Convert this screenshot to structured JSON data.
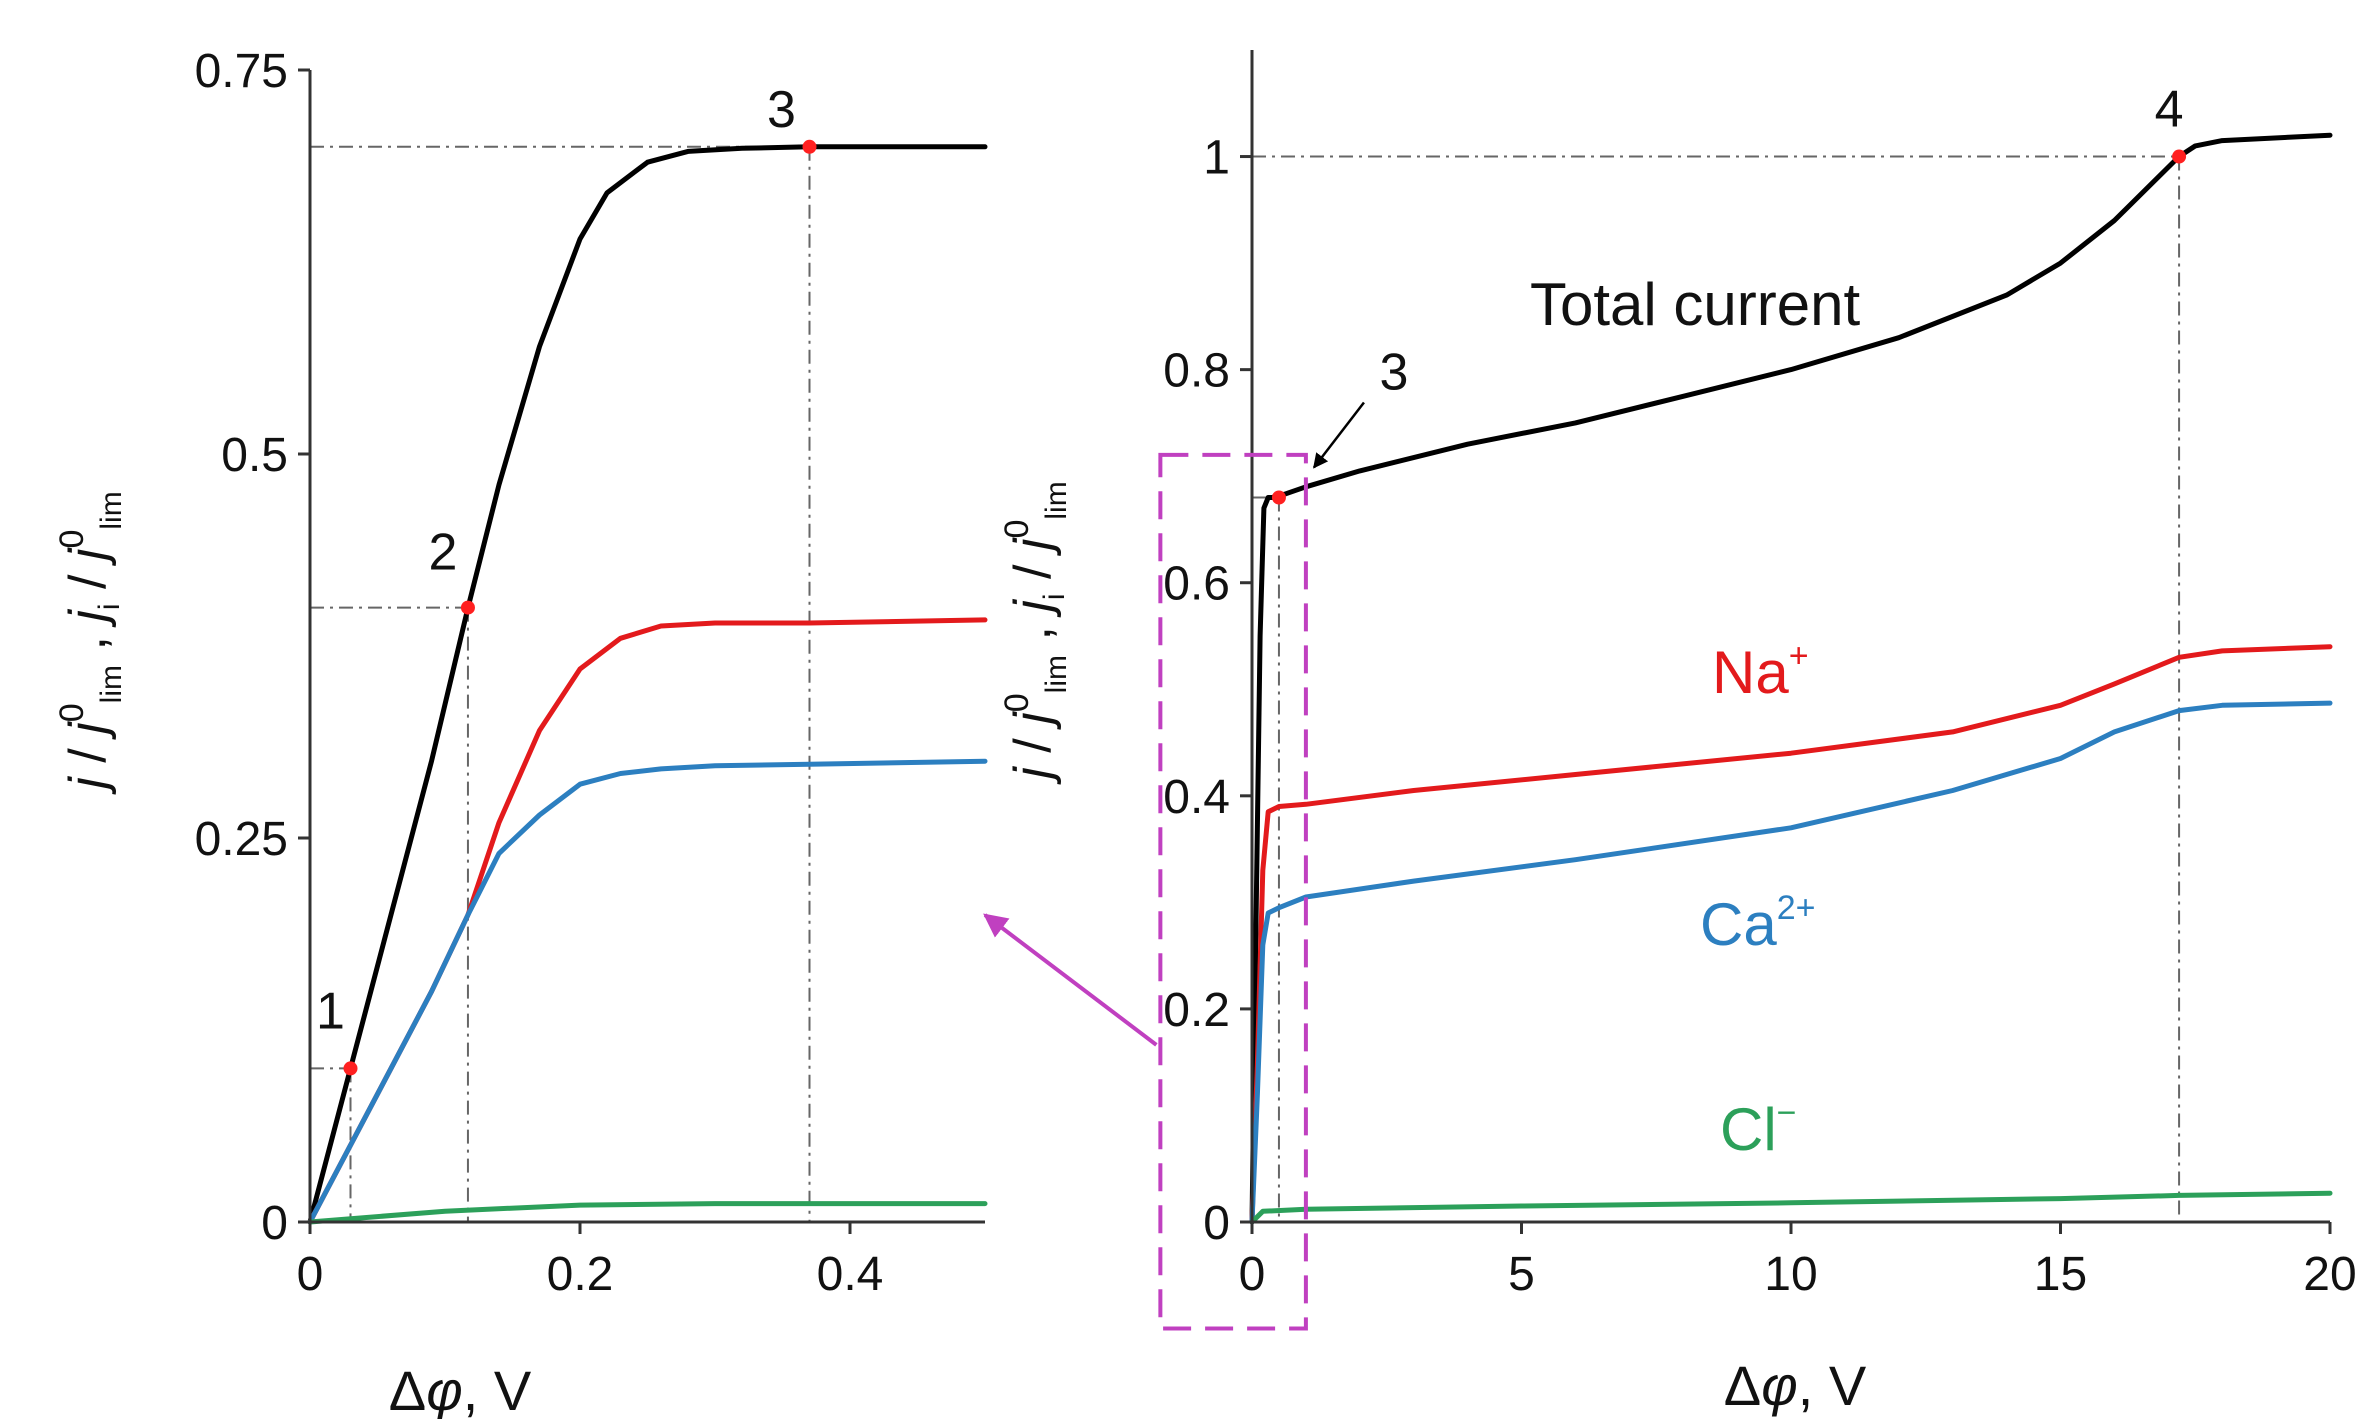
{
  "chart_data": [
    {
      "id": "left",
      "type": "line",
      "xlabel_prefix": "Δ",
      "xlabel_var": "φ",
      "xlabel_unit": ", V",
      "ylabel": {
        "j": "j",
        "slash": " / ",
        "j0": "j",
        "sup0": "0",
        "sub_lim": "lim",
        "comma": " , ",
        "ji": "j",
        "sub_i": "i",
        "slash2": " / ",
        "j0b": "j",
        "sup0b": "0",
        "sub_limb": "lim"
      },
      "xlim": [
        0,
        0.5
      ],
      "ylim": [
        0,
        0.75
      ],
      "xticks": [
        0,
        0.2,
        0.4
      ],
      "xtick_labels": [
        "0",
        "0.2",
        "0.4"
      ],
      "yticks": [
        0,
        0.25,
        0.5,
        0.75
      ],
      "ytick_labels": [
        "0",
        "0.25",
        "0.5",
        "0.75"
      ],
      "series": [
        {
          "name": "Total current",
          "color": "#000000",
          "x": [
            0,
            0.03,
            0.06,
            0.09,
            0.117,
            0.14,
            0.17,
            0.2,
            0.22,
            0.25,
            0.28,
            0.32,
            0.37,
            0.42,
            0.5
          ],
          "y": [
            0,
            0.1,
            0.2,
            0.3,
            0.4,
            0.48,
            0.57,
            0.64,
            0.67,
            0.69,
            0.697,
            0.699,
            0.7,
            0.7,
            0.7
          ]
        },
        {
          "name": "Na+",
          "color": "#e31a1c",
          "x": [
            0,
            0.03,
            0.06,
            0.09,
            0.117,
            0.14,
            0.17,
            0.2,
            0.23,
            0.26,
            0.3,
            0.37,
            0.5
          ],
          "y": [
            0,
            0.05,
            0.1,
            0.15,
            0.2,
            0.26,
            0.32,
            0.36,
            0.38,
            0.388,
            0.39,
            0.39,
            0.392
          ]
        },
        {
          "name": "Ca2+",
          "color": "#2c7fc0",
          "x": [
            0,
            0.03,
            0.06,
            0.09,
            0.117,
            0.14,
            0.17,
            0.2,
            0.23,
            0.26,
            0.3,
            0.37,
            0.5
          ],
          "y": [
            0,
            0.05,
            0.1,
            0.15,
            0.2,
            0.24,
            0.265,
            0.285,
            0.292,
            0.295,
            0.297,
            0.298,
            0.3
          ]
        },
        {
          "name": "Cl-",
          "color": "#2ca05a",
          "x": [
            0,
            0.1,
            0.2,
            0.3,
            0.4,
            0.5
          ],
          "y": [
            0,
            0.007,
            0.011,
            0.012,
            0.012,
            0.012
          ]
        }
      ],
      "points": [
        {
          "label": "1",
          "x": 0.03,
          "y": 0.1
        },
        {
          "label": "2",
          "x": 0.117,
          "y": 0.4
        },
        {
          "label": "3",
          "x": 0.37,
          "y": 0.7
        }
      ]
    },
    {
      "id": "right",
      "type": "line",
      "xlabel_prefix": "Δ",
      "xlabel_var": "φ",
      "xlabel_unit": ", V",
      "ylabel": {
        "j": "j",
        "slash": " / ",
        "j0": "j",
        "sup0": "0",
        "sub_lim": "lim",
        "comma": " , ",
        "ji": "j",
        "sub_i": "i",
        "slash2": " / ",
        "j0b": "j",
        "sup0b": "0",
        "sub_limb": "lim"
      },
      "xlim": [
        0,
        20
      ],
      "ylim": [
        0,
        1.1
      ],
      "xticks": [
        0,
        5,
        10,
        15,
        20
      ],
      "xtick_labels": [
        "0",
        "5",
        "10",
        "15",
        "20"
      ],
      "yticks": [
        0,
        0.2,
        0.4,
        0.6,
        0.8,
        1
      ],
      "ytick_labels": [
        "0",
        "0.2",
        "0.4",
        "0.6",
        "0.8",
        "1"
      ],
      "series": [
        {
          "name": "Total current",
          "color": "#000000",
          "x": [
            0,
            0.08,
            0.15,
            0.22,
            0.3,
            0.37,
            0.6,
            1,
            2,
            4,
            6,
            8,
            10,
            12,
            14,
            15,
            16,
            17.2,
            17.5,
            18,
            20
          ],
          "y": [
            0,
            0.3,
            0.55,
            0.67,
            0.68,
            0.68,
            0.683,
            0.69,
            0.705,
            0.73,
            0.75,
            0.775,
            0.8,
            0.83,
            0.87,
            0.9,
            0.94,
            1,
            1.01,
            1.015,
            1.02
          ]
        },
        {
          "name": "Na+",
          "color": "#e31a1c",
          "x": [
            0,
            0.1,
            0.2,
            0.3,
            0.5,
            1,
            3,
            6,
            10,
            13,
            15,
            16,
            17.2,
            18,
            20
          ],
          "y": [
            0,
            0.15,
            0.33,
            0.385,
            0.39,
            0.392,
            0.405,
            0.42,
            0.44,
            0.46,
            0.485,
            0.505,
            0.53,
            0.536,
            0.54
          ]
        },
        {
          "name": "Ca2+",
          "color": "#2c7fc0",
          "x": [
            0,
            0.1,
            0.2,
            0.3,
            0.5,
            1,
            3,
            6,
            10,
            13,
            15,
            16,
            17.2,
            18,
            20
          ],
          "y": [
            0,
            0.12,
            0.26,
            0.29,
            0.295,
            0.305,
            0.32,
            0.34,
            0.37,
            0.405,
            0.435,
            0.46,
            0.48,
            0.485,
            0.487
          ]
        },
        {
          "name": "Cl-",
          "color": "#2ca05a",
          "x": [
            0,
            0.2,
            1,
            5,
            10,
            15,
            17.2,
            20
          ],
          "y": [
            0,
            0.01,
            0.012,
            0.015,
            0.018,
            0.022,
            0.025,
            0.027
          ]
        }
      ],
      "points": [
        {
          "label": "3",
          "x": 0.5,
          "y": 0.68
        },
        {
          "label": "4",
          "x": 17.2,
          "y": 1.0
        }
      ],
      "series_labels": {
        "total": "Total current",
        "na_base": "Na",
        "na_sup": "+",
        "ca_base": "Ca",
        "ca_sup": "2+",
        "cl_base": "Cl",
        "cl_sup": "−"
      },
      "zoom_box": {
        "x": [
          -1.7,
          1
        ],
        "y": [
          -0.1,
          0.72
        ]
      },
      "annotation_color": "#c040c0"
    }
  ]
}
